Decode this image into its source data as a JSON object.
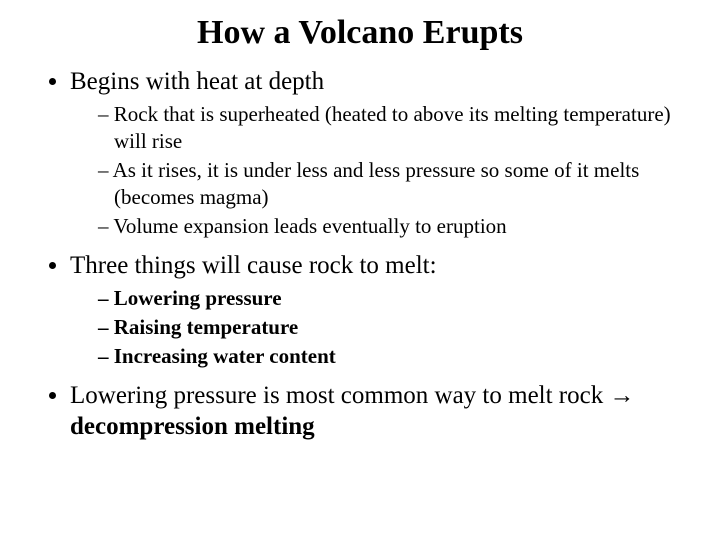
{
  "title": "How a Volcano Erupts",
  "bullets": {
    "b1": "Begins with heat at depth",
    "b1_sub": {
      "s1": "Rock that is superheated (heated to above its melting temperature) will rise",
      "s2": "As it rises, it is under less and less pressure so some of it melts (becomes magma)",
      "s3": "Volume expansion leads eventually to eruption"
    },
    "b2": "Three things will cause rock to melt:",
    "b2_sub": {
      "s1": "Lowering pressure",
      "s2": "Raising temperature",
      "s3": "Increasing water content"
    },
    "b3_pre": "Lowering pressure is most common way to melt rock ",
    "b3_arrow": "→",
    "b3_bold": " decompression melting"
  },
  "colors": {
    "background": "#ffffff",
    "text": "#000000"
  },
  "typography": {
    "font_family": "Times New Roman",
    "title_fontsize": 34,
    "level1_fontsize": 25,
    "level2_fontsize": 21,
    "title_weight": "bold"
  }
}
